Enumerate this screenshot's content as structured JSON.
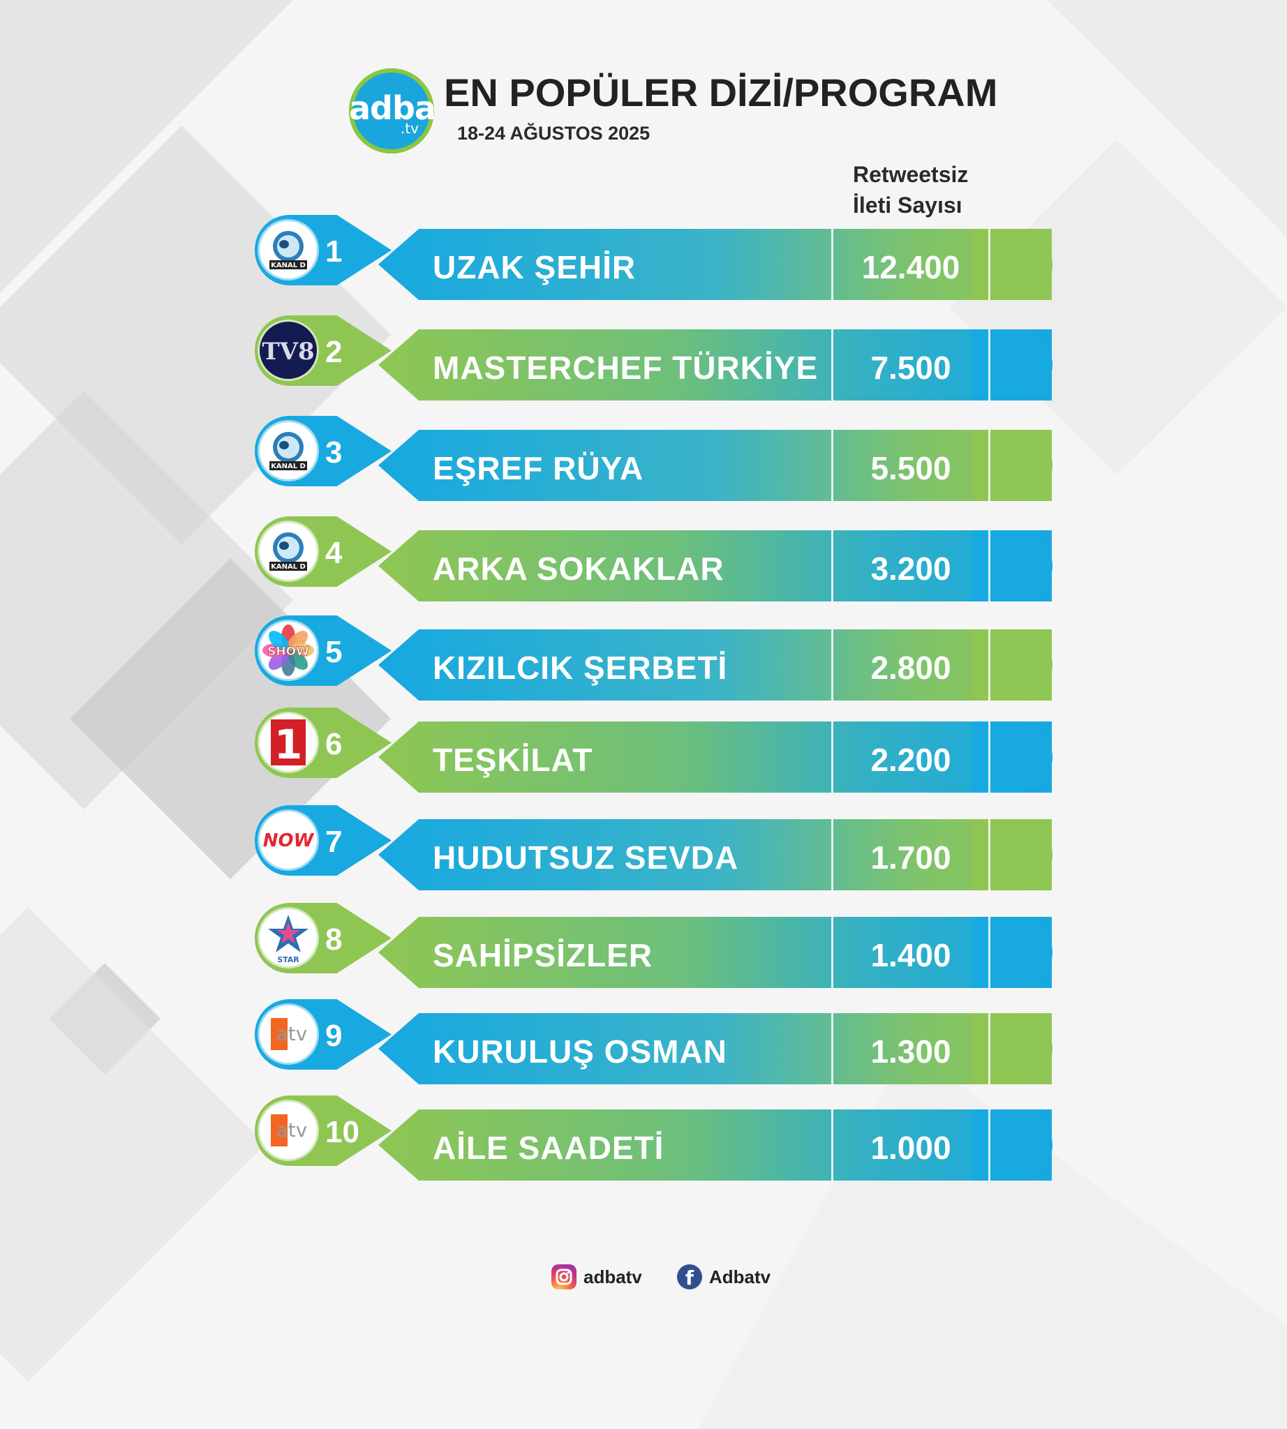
{
  "header": {
    "logo_text": "adba",
    "logo_suffix": ".tv",
    "title": "EN POPÜLER DİZİ/PROGRAM",
    "date_range": "18-24 AĞUSTOS 2025",
    "column_title_line1": "Retweetsiz",
    "column_title_line2": "İleti Sayısı"
  },
  "colors": {
    "blue": "#18a9e0",
    "green": "#8fc653",
    "title": "#222222"
  },
  "rows": [
    {
      "rank": "1",
      "channel": "kanal-d",
      "channel_text": "KANAL D",
      "name": "UZAK ŞEHİR",
      "value": "12.400",
      "scheme": "blue"
    },
    {
      "rank": "2",
      "channel": "tv8",
      "channel_text": "TV8",
      "name": "MASTERCHEF TÜRKİYE",
      "value": "7.500",
      "scheme": "green"
    },
    {
      "rank": "3",
      "channel": "kanal-d",
      "channel_text": "KANAL D",
      "name": "EŞREF RÜYA",
      "value": "5.500",
      "scheme": "blue"
    },
    {
      "rank": "4",
      "channel": "kanal-d",
      "channel_text": "KANAL D",
      "name": "ARKA SOKAKLAR",
      "value": "3.200",
      "scheme": "green"
    },
    {
      "rank": "5",
      "channel": "show",
      "channel_text": "SHOW",
      "name": "KIZILCIK ŞERBETİ",
      "value": "2.800",
      "scheme": "blue"
    },
    {
      "rank": "6",
      "channel": "trt1",
      "channel_text": "1",
      "name": "TEŞKİLAT",
      "value": "2.200",
      "scheme": "green"
    },
    {
      "rank": "7",
      "channel": "now",
      "channel_text": "NOW",
      "name": "HUDUTSUZ SEVDA",
      "value": "1.700",
      "scheme": "blue"
    },
    {
      "rank": "8",
      "channel": "star",
      "channel_text": "STAR",
      "name": "SAHİPSİZLER",
      "value": "1.400",
      "scheme": "green"
    },
    {
      "rank": "9",
      "channel": "atv",
      "channel_text": "atv",
      "name": "KURULUŞ OSMAN",
      "value": "1.300",
      "scheme": "blue"
    },
    {
      "rank": "10",
      "channel": "atv",
      "channel_text": "atv",
      "name": "AİLE SAADETİ",
      "value": "1.000",
      "scheme": "green"
    }
  ],
  "footer": {
    "instagram_handle": "adbatv",
    "facebook_handle": "Adbatv",
    "instagram_icon": "instagram-icon",
    "facebook_icon": "facebook-icon"
  }
}
